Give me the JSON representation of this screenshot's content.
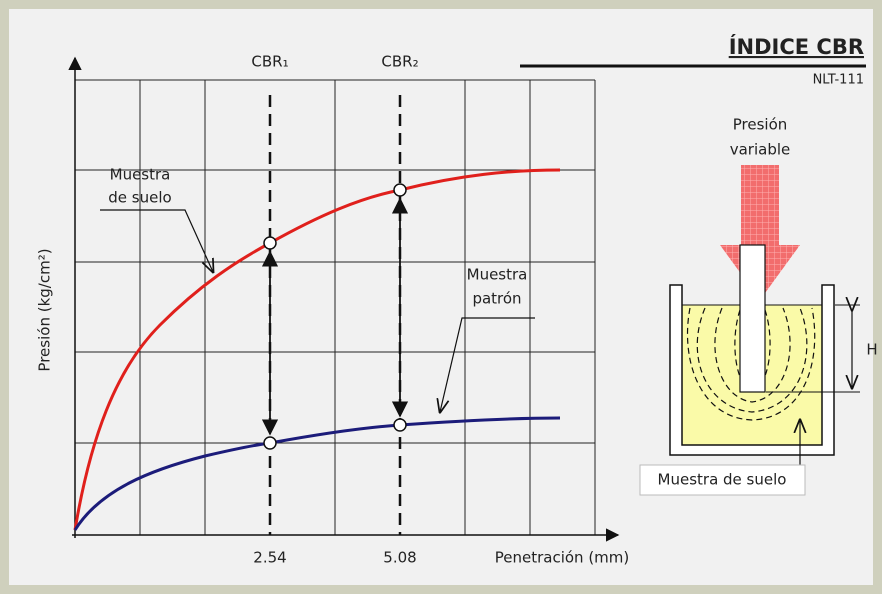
{
  "header": {
    "title": "ÍNDICE CBR",
    "subtitle": "NLT-111"
  },
  "graph": {
    "y_label": "Presión (kg/cm²)",
    "x_label": "Penetración (mm)",
    "x_ticks": [
      "2.54",
      "5.08"
    ],
    "markers": [
      "CBR₁",
      "CBR₂"
    ],
    "curve_labels": [
      [
        "Muestra",
        "de suelo"
      ],
      [
        "Muestra",
        "patrón"
      ]
    ]
  },
  "apparatus": {
    "load_label": [
      "Presión",
      "variable"
    ],
    "height_label": "H",
    "sample_label": "Muestra de suelo"
  }
}
